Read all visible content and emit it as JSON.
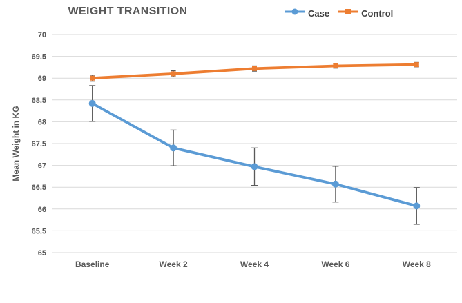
{
  "chart_data": {
    "type": "line",
    "title": "WEIGHT TRANSITION",
    "categories": [
      "Baseline",
      "Week 2",
      "Week 4",
      "Week 6",
      "Week 8"
    ],
    "series": [
      {
        "name": "Case",
        "color": "#5B9BD5",
        "marker": "circle",
        "values": [
          68.42,
          67.4,
          66.97,
          66.57,
          66.07
        ],
        "error_bars": [
          0.41,
          0.41,
          0.43,
          0.41,
          0.42
        ]
      },
      {
        "name": "Control",
        "color": "#ED7D31",
        "marker": "square",
        "values": [
          69.0,
          69.1,
          69.22,
          69.28,
          69.31
        ],
        "error_bars": [
          0.07,
          0.07,
          0.06,
          0.05,
          0.05
        ]
      }
    ],
    "xlabel": "",
    "ylabel": "Mean Weight in KG",
    "ylim": [
      65,
      70
    ],
    "ytick_step": 0.5,
    "grid": true,
    "legend_position": "top-right"
  },
  "style": {
    "grid_color": "#D9D9D9",
    "text_color": "#595959",
    "legend_text_color": "#404040",
    "error_bar_color": "#595959",
    "background": "#FFFFFF"
  }
}
